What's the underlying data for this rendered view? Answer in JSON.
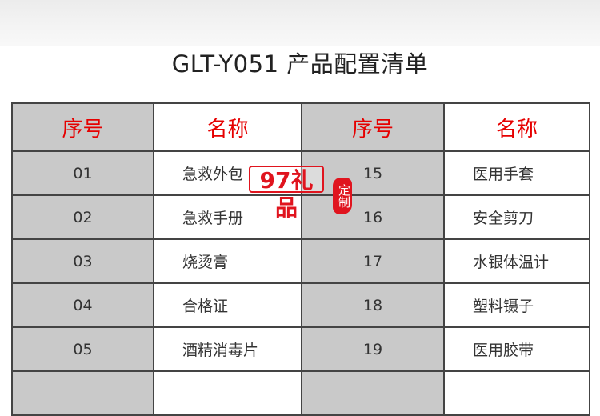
{
  "title": "GLT-Y051 产品配置清单",
  "table": {
    "headers": [
      "序号",
      "名称",
      "序号",
      "名称"
    ],
    "rows": [
      [
        "01",
        "急救外包",
        "15",
        "医用手套"
      ],
      [
        "02",
        "急救手册",
        "16",
        "安全剪刀"
      ],
      [
        "03",
        "烧烫膏",
        "17",
        "水银体温计"
      ],
      [
        "04",
        "合格证",
        "18",
        "塑料镊子"
      ],
      [
        "05",
        "酒精消毒片",
        "19",
        "医用胶带"
      ]
    ]
  },
  "watermark": {
    "logo_text": "97礼品",
    "seal_text": "定制"
  },
  "colors": {
    "header_text": "#e60000",
    "number_cell_bg": "#c9c9c9",
    "watermark": "#e0141e"
  }
}
